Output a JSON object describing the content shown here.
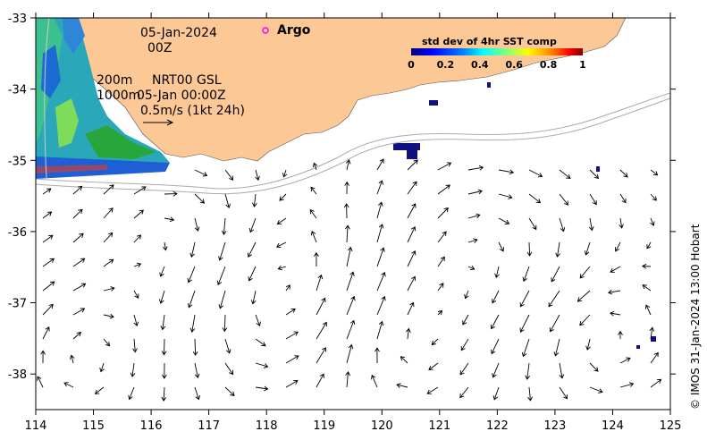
{
  "map": {
    "date": "05-Jan-2024",
    "hour": "00Z",
    "argo_label": "Argo",
    "contour_200": "200m",
    "contour_1000": "1000m",
    "product": "NRT00 GSL",
    "product_time": "05-Jan 00:00Z",
    "scale_label": "0.5m/s (1kt 24h)",
    "credit": "© IMOS 31-Jan-2024 13:00 Hobart",
    "land_color": "#fcc896",
    "colorbar": {
      "title": "std dev of 4hr SST comp",
      "ticks": [
        "0",
        "0.2",
        "0.4",
        "0.6",
        "0.8",
        "1"
      ],
      "colors": [
        "#00007f",
        "#0000ff",
        "#007fff",
        "#00ffff",
        "#7fff7f",
        "#ffff00",
        "#ff7f00",
        "#ff0000",
        "#7f0000"
      ]
    },
    "x_ticks": [
      "114",
      "115",
      "116",
      "117",
      "118",
      "119",
      "120",
      "121",
      "122",
      "123",
      "124",
      "125"
    ],
    "y_ticks": [
      "-33",
      "-34",
      "-35",
      "-36",
      "-37",
      "-38"
    ],
    "lon_range": [
      114,
      125
    ],
    "lat_range": [
      -38.5,
      -33
    ]
  }
}
